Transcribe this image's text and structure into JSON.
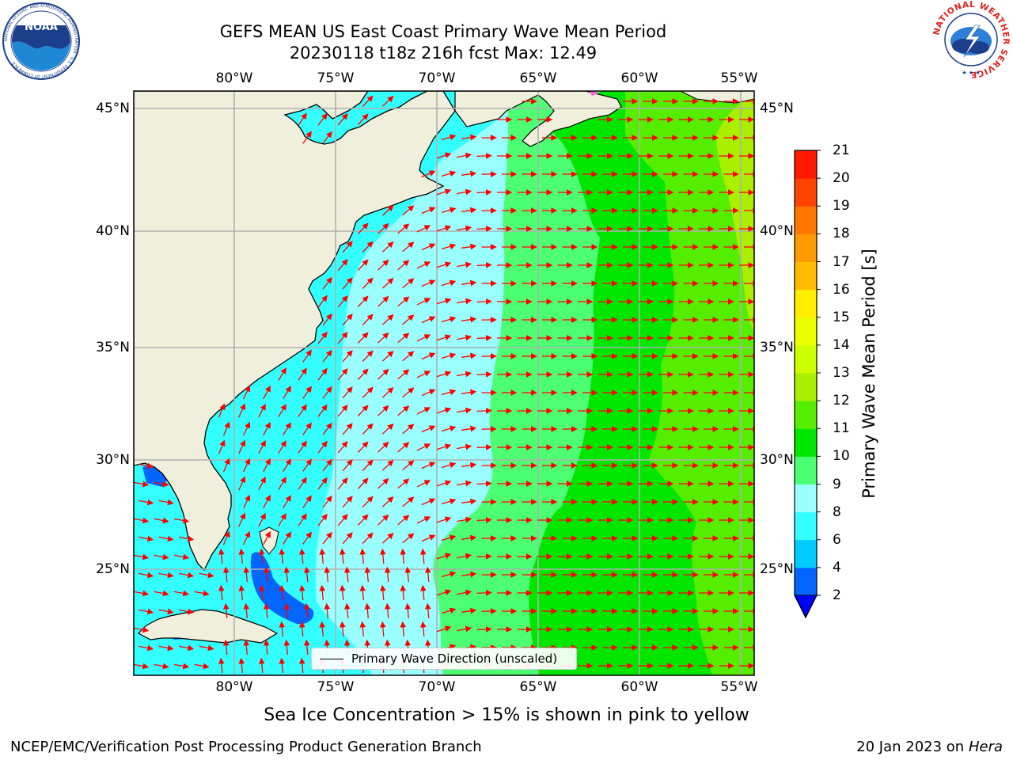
{
  "title": {
    "line1": "GEFS MEAN US East Coast Primary Wave Mean Period",
    "line2": "20230118 t18z 216h fcst   Max: 12.49"
  },
  "logos": {
    "noaa_text": "NOAA",
    "noaa_ring": "NATIONAL OCEANIC AND ATMOSPHERIC ADMINISTRATION · U.S. DEPARTMENT OF COMMERCE",
    "nws_ring": "NATIONAL WEATHER SERVICE"
  },
  "axes": {
    "lon_labels": [
      "80°W",
      "75°W",
      "70°W",
      "65°W",
      "60°W",
      "55°W"
    ],
    "lat_labels": [
      "45°N",
      "40°N",
      "35°N",
      "30°N",
      "25°N"
    ],
    "lon_range": [
      -85,
      -54.4
    ],
    "lat_range": [
      20,
      46
    ],
    "grid": true
  },
  "colorbar": {
    "label": "Primary Wave Mean Period [s]",
    "ticks": [
      "2",
      "4",
      "6",
      "8",
      "9",
      "10",
      "11",
      "12",
      "13",
      "14",
      "15",
      "16",
      "17",
      "18",
      "19",
      "20",
      "21"
    ],
    "colors": [
      "#0066ff",
      "#00ccff",
      "#33ffff",
      "#99ffff",
      "#4cff73",
      "#00e600",
      "#55ee00",
      "#aaee00",
      "#ccff00",
      "#eeff00",
      "#ffee00",
      "#ffbb00",
      "#ff9900",
      "#ff7700",
      "#ff4400",
      "#ff1a00"
    ],
    "extend_min_color": "#0000ff"
  },
  "legend": {
    "entry": "Primary Wave Direction (unscaled)"
  },
  "caption": "Sea Ice Concentration > 15% is shown in pink to yellow",
  "footer": {
    "left": "NCEP/EMC/Verification Post Processing Product Generation Branch",
    "right_date": "20 Jan 2023 on",
    "right_machine": "Hera"
  },
  "colors": {
    "land": "#efefdc",
    "arrow": "#ff0000",
    "grid": "#b0b0b0",
    "coast": "#000000"
  }
}
